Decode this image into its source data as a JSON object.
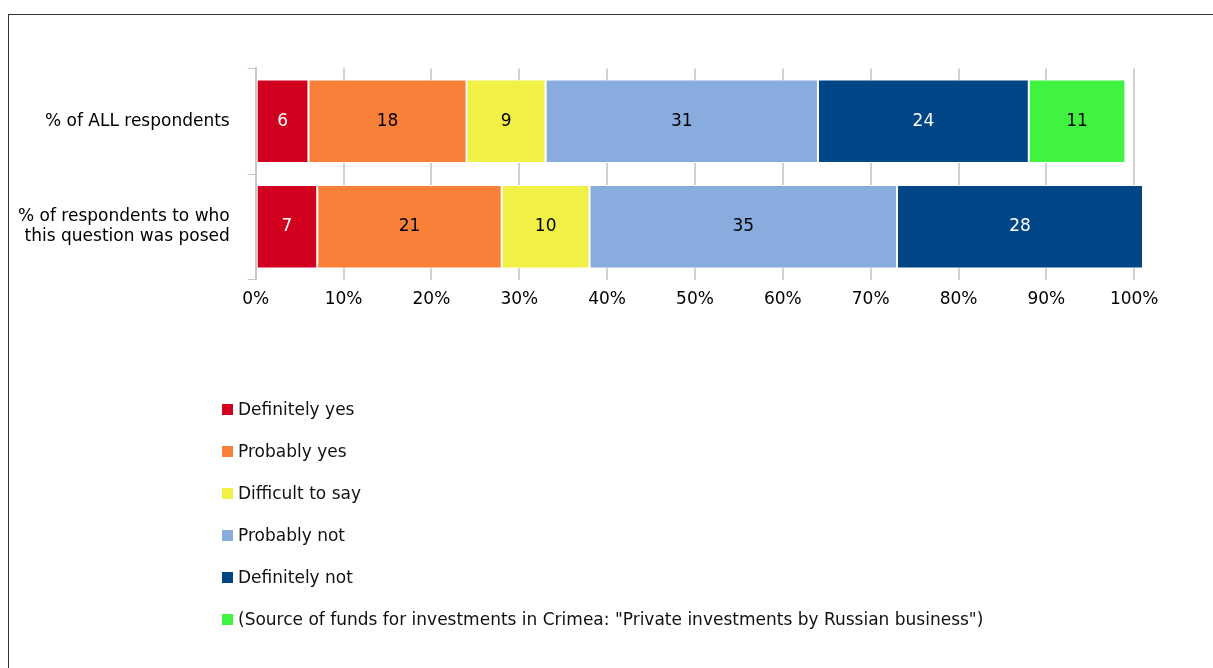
{
  "chart_data": {
    "type": "bar",
    "orientation": "horizontal",
    "stacked": true,
    "categories": [
      "% of ALL respondents",
      "% of respondents to who this question was posed"
    ],
    "series": [
      {
        "name": "Definitely yes",
        "color": "#d2001f",
        "values": [
          6,
          7
        ]
      },
      {
        "name": "Probably yes",
        "color": "#f98038",
        "values": [
          18,
          21
        ]
      },
      {
        "name": "Difficult to say",
        "color": "#f0f046",
        "values": [
          9,
          10
        ]
      },
      {
        "name": "Probably not",
        "color": "#89acdf",
        "values": [
          31,
          35
        ]
      },
      {
        "name": "Definitely not",
        "color": "#004586",
        "values": [
          24,
          28
        ]
      },
      {
        "name": "(Source of funds for investments in Crimea: \"Private investments by Russian business\")",
        "color": "#40f340",
        "values": [
          11,
          null
        ]
      }
    ],
    "xlim": [
      0,
      101
    ],
    "xticks": [
      {
        "value": 0,
        "label": "0%"
      },
      {
        "value": 10,
        "label": "10%"
      },
      {
        "value": 20,
        "label": "20%"
      },
      {
        "value": 30,
        "label": "30%"
      },
      {
        "value": 40,
        "label": "40%"
      },
      {
        "value": 50,
        "label": "50%"
      },
      {
        "value": 60,
        "label": "60%"
      },
      {
        "value": 70,
        "label": "70%"
      },
      {
        "value": 80,
        "label": "80%"
      },
      {
        "value": 90,
        "label": "90%"
      },
      {
        "value": 100,
        "label": "100%"
      }
    ],
    "grid": "x",
    "legend": "bottom",
    "data_labels": true
  }
}
